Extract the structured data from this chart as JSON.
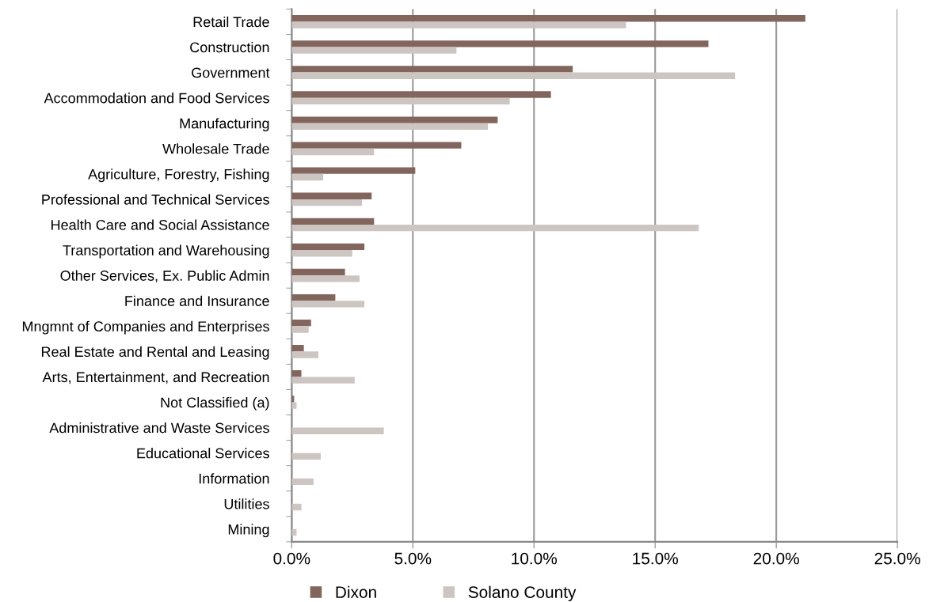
{
  "chart_data": {
    "type": "bar",
    "orientation": "horizontal",
    "categories": [
      "Retail Trade",
      "Construction",
      "Government",
      "Accommodation and Food Services",
      "Manufacturing",
      "Wholesale Trade",
      "Agriculture, Forestry, Fishing",
      "Professional and Technical Services",
      "Health Care and Social Assistance",
      "Transportation and Warehousing",
      "Other Services, Ex. Public Admin",
      "Finance and Insurance",
      "Mngmnt of Companies and Enterprises",
      "Real Estate and Rental and Leasing",
      "Arts, Entertainment, and Recreation",
      "Not Classified (a)",
      "Administrative and Waste Services",
      "Educational Services",
      "Information",
      "Utilities",
      "Mining"
    ],
    "series": [
      {
        "name": "Dixon",
        "color": "#82665e",
        "values": [
          21.2,
          17.2,
          11.6,
          10.7,
          8.5,
          7.0,
          5.1,
          3.3,
          3.4,
          3.0,
          2.2,
          1.8,
          0.8,
          0.5,
          0.4,
          0.1,
          0,
          0,
          0,
          0,
          0
        ]
      },
      {
        "name": "Solano County",
        "color": "#cdc5c2",
        "values": [
          13.8,
          6.8,
          18.3,
          9.0,
          8.1,
          3.4,
          1.3,
          2.9,
          16.8,
          2.5,
          2.8,
          3.0,
          0.7,
          1.1,
          2.6,
          0.2,
          3.8,
          1.2,
          0.9,
          0.4,
          0.2
        ]
      }
    ],
    "xlim": [
      0,
      25
    ],
    "xticks": [
      {
        "value": 0,
        "label": "0.0%"
      },
      {
        "value": 5,
        "label": "5.0%"
      },
      {
        "value": 10,
        "label": "10.0%"
      },
      {
        "value": 15,
        "label": "15.0%"
      },
      {
        "value": 20,
        "label": "20.0%"
      },
      {
        "value": 25,
        "label": "25.0%"
      }
    ],
    "grid": "x",
    "legend": "bottom"
  }
}
